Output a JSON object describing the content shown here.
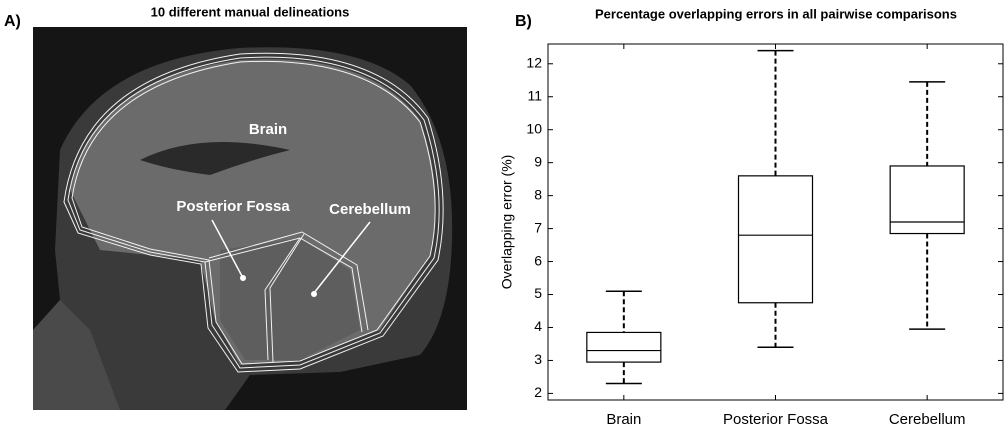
{
  "panel_a": {
    "label": "A)",
    "title": "10 different manual delineations",
    "annotations": [
      "Brain",
      "Posterior Fossa",
      "Cerebellum"
    ]
  },
  "chart_data": {
    "type": "box",
    "label": "B)",
    "title": "Percentage overlapping errors in all pairwise comparisons",
    "y_label": "Overlapping error (%)",
    "categories": [
      "Brain",
      "Posterior Fossa",
      "Cerebellum"
    ],
    "boxes": [
      {
        "min": 2.3,
        "q1": 2.95,
        "median": 3.3,
        "q3": 3.85,
        "max": 5.1
      },
      {
        "min": 3.4,
        "q1": 4.75,
        "median": 6.8,
        "q3": 8.6,
        "max": 12.4
      },
      {
        "min": 3.95,
        "q1": 6.85,
        "median": 7.2,
        "q3": 8.9,
        "max": 11.45
      }
    ],
    "ylim": [
      1.8,
      12.6
    ],
    "yticks": [
      2,
      3,
      4,
      5,
      6,
      7,
      8,
      9,
      10,
      11,
      12
    ],
    "grid": false
  }
}
